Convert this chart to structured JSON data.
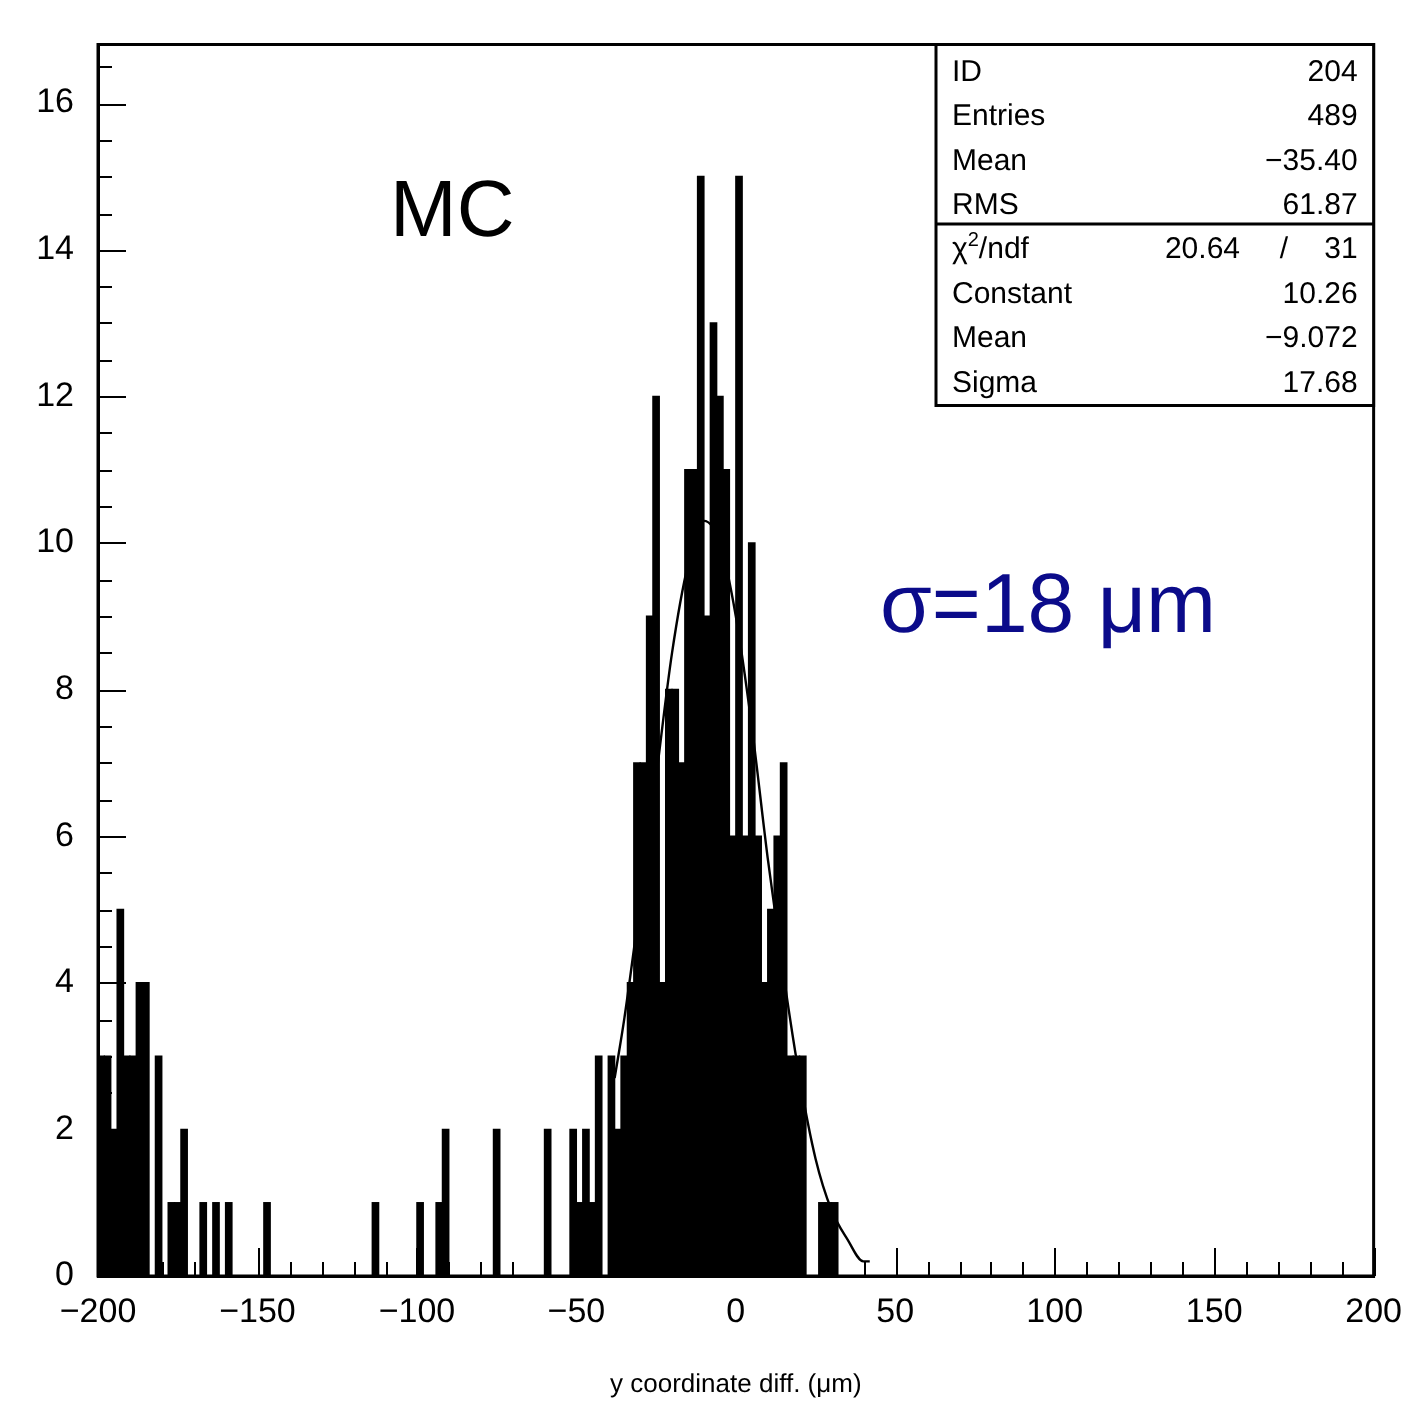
{
  "chart_data": {
    "type": "histogram",
    "xlabel": "y coordinate diff. (μm)",
    "color": "#000000",
    "bins": [
      -200,
      -198,
      -196,
      -194,
      -192,
      -190,
      -188,
      -186,
      -184,
      -182,
      -180,
      -178,
      -176,
      -174,
      -172,
      -170,
      -168,
      -166,
      -164,
      -162,
      -160,
      -158,
      -156,
      -154,
      -152,
      -150,
      -148,
      -146,
      -144,
      -142,
      -140,
      -138,
      -136,
      -134,
      -132,
      -130,
      -128,
      -126,
      -124,
      -122,
      -120,
      -118,
      -116,
      -114,
      -112,
      -110,
      -108,
      -106,
      -104,
      -102,
      -100,
      -98,
      -96,
      -94,
      -92,
      -90,
      -88,
      -86,
      -84,
      -82,
      -80,
      -78,
      -76,
      -74,
      -72,
      -70,
      -68,
      -66,
      -64,
      -62,
      -60,
      -58,
      -56,
      -54,
      -52,
      -50,
      -48,
      -46,
      -44,
      -42,
      -40,
      -38,
      -36,
      -34,
      -32,
      -30,
      -28,
      -26,
      -24,
      -22,
      -20,
      -18,
      -16,
      -14,
      -12,
      -10,
      -8,
      -6,
      -4,
      -2,
      0,
      2,
      4,
      6,
      8,
      10,
      12,
      14,
      16,
      18,
      20,
      22,
      24,
      26,
      28,
      30,
      32
    ],
    "values": [
      3,
      3,
      2,
      5,
      3,
      3,
      4,
      4,
      0,
      3,
      0,
      1,
      1,
      2,
      0,
      0,
      1,
      0,
      1,
      0,
      1,
      0,
      0,
      0,
      0,
      0,
      1,
      0,
      0,
      0,
      0,
      0,
      0,
      0,
      0,
      0,
      0,
      0,
      0,
      0,
      0,
      0,
      0,
      1,
      0,
      0,
      0,
      0,
      0,
      0,
      1,
      0,
      0,
      1,
      2,
      0,
      0,
      0,
      0,
      0,
      0,
      0,
      2,
      0,
      0,
      0,
      0,
      0,
      0,
      0,
      2,
      0,
      0,
      0,
      2,
      1,
      2,
      1,
      3,
      0,
      3,
      2,
      3,
      4,
      7,
      7,
      9,
      12,
      4,
      8,
      8,
      7,
      11,
      11,
      15,
      9,
      13,
      12,
      11,
      6,
      15,
      6,
      10,
      6,
      4,
      5,
      6,
      7,
      3,
      3,
      3,
      0,
      0,
      1,
      1,
      1
    ],
    "series": [
      {
        "type": "line",
        "color": "#000000",
        "x": [
          -38,
          -35,
          -30,
          -25,
          -20,
          -15,
          -10,
          -5,
          0,
          5,
          10,
          15,
          20,
          25,
          30,
          35,
          40,
          42
        ],
        "values": [
          2.7,
          3.5,
          5.1,
          6.8,
          8.5,
          9.7,
          10.3,
          10.0,
          9.0,
          7.5,
          5.7,
          4.1,
          2.7,
          1.6,
          0.9,
          0.5,
          0.2,
          0.2
        ]
      }
    ],
    "xlim": [
      -200,
      200
    ],
    "xticks": [
      -200,
      {
        "value": -190,
        "label": null
      },
      {
        "value": -180,
        "label": null
      },
      {
        "value": -170,
        "label": null
      },
      {
        "value": -160,
        "label": null
      },
      -150,
      {
        "value": -140,
        "label": null
      },
      {
        "value": -130,
        "label": null
      },
      {
        "value": -120,
        "label": null
      },
      {
        "value": -110,
        "label": null
      },
      -100,
      {
        "value": -90,
        "label": null
      },
      {
        "value": -80,
        "label": null
      },
      {
        "value": -70,
        "label": null
      },
      {
        "value": -60,
        "label": null
      },
      -50,
      {
        "value": -40,
        "label": null
      },
      {
        "value": -30,
        "label": null
      },
      {
        "value": -20,
        "label": null
      },
      {
        "value": -10,
        "label": null
      },
      0,
      {
        "value": 10,
        "label": null
      },
      {
        "value": 20,
        "label": null
      },
      {
        "value": 30,
        "label": null
      },
      {
        "value": 40,
        "label": null
      },
      50,
      {
        "value": 60,
        "label": null
      },
      {
        "value": 70,
        "label": null
      },
      {
        "value": 80,
        "label": null
      },
      {
        "value": 90,
        "label": null
      },
      100,
      {
        "value": 110,
        "label": null
      },
      {
        "value": 120,
        "label": null
      },
      {
        "value": 130,
        "label": null
      },
      {
        "value": 140,
        "label": null
      },
      150,
      {
        "value": 160,
        "label": null
      },
      {
        "value": 170,
        "label": null
      },
      {
        "value": 180,
        "label": null
      },
      {
        "value": 190,
        "label": null
      },
      200
    ],
    "ylim": [
      0,
      16.8
    ],
    "yticks": [
      0,
      {
        "value": 0.5,
        "label": null
      },
      {
        "value": 1,
        "label": null
      },
      {
        "value": 1.5,
        "label": null
      },
      2,
      {
        "value": 2.5,
        "label": null
      },
      {
        "value": 3,
        "label": null
      },
      {
        "value": 3.5,
        "label": null
      },
      4,
      {
        "value": 4.5,
        "label": null
      },
      {
        "value": 5,
        "label": null
      },
      {
        "value": 5.5,
        "label": null
      },
      6,
      {
        "value": 6.5,
        "label": null
      },
      {
        "value": 7,
        "label": null
      },
      {
        "value": 7.5,
        "label": null
      },
      8,
      {
        "value": 8.5,
        "label": null
      },
      {
        "value": 9,
        "label": null
      },
      {
        "value": 9.5,
        "label": null
      },
      10,
      {
        "value": 10.5,
        "label": null
      },
      {
        "value": 11,
        "label": null
      },
      {
        "value": 11.5,
        "label": null
      },
      12,
      {
        "value": 12.5,
        "label": null
      },
      {
        "value": 13,
        "label": null
      },
      {
        "value": 13.5,
        "label": null
      },
      14,
      {
        "value": 14.5,
        "label": null
      },
      {
        "value": 15,
        "label": null
      },
      {
        "value": 15.5,
        "label": null
      },
      16,
      {
        "value": 16.5,
        "label": null
      }
    ],
    "grid": false,
    "annotations": [
      "MC",
      "σ=18 μm",
      "ID 204",
      "Entries 489",
      "Mean −35.40",
      "RMS 61.87",
      "χ$^{2}$/ndf 20.64 / 31",
      "Constant 10.26",
      "Mean −9.072",
      "Sigma 17.68"
    ]
  }
}
